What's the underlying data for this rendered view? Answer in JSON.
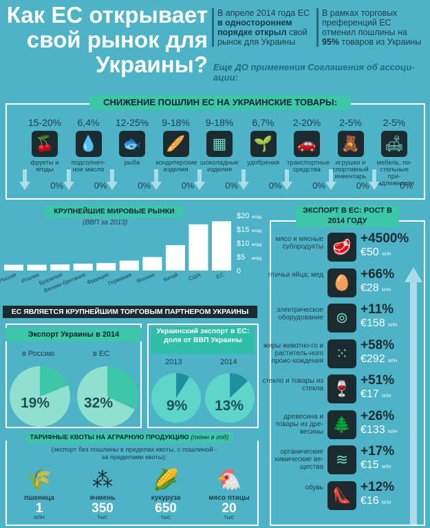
{
  "title": [
    "Как ЕС открывает",
    "свой рынок для",
    "Украины?"
  ],
  "intro1": {
    "pre": "В апреле 2014 года ЕС ",
    "bold": "в одностороннем порядке открыл",
    "post": " свой рынок для Украины"
  },
  "intro2": {
    "pre": "В рамках торговых преференций ЕС отменил пошлины на ",
    "bold": "95%",
    "post": " товаров из Украины"
  },
  "subtitle": "Еще ДО применения Соглашения об ассоци-ации:",
  "tariffs": {
    "banner": "СНИЖЕНИЕ ПОШЛИН ЕС НА УКРАИНСКИЕ ТОВАРЫ:",
    "items": [
      {
        "from": "15-20%",
        "label": "фрукты и ягоды",
        "to": "0%",
        "icon": "cherry-icon",
        "glyph": "🍒"
      },
      {
        "from": "6,4%",
        "label": "подсолнеч-ное масло",
        "to": "0%",
        "icon": "oil-drop-icon",
        "glyph": "💧"
      },
      {
        "from": "12-25%",
        "label": "рыба",
        "to": "0%",
        "icon": "fish-icon",
        "glyph": "🐟"
      },
      {
        "from": "9-18%",
        "label": "кондитерские изделия",
        "to": "0%",
        "icon": "bread-icon",
        "glyph": "🥖"
      },
      {
        "from": "9-18%",
        "label": "шоколадные изделия",
        "to": "0%",
        "icon": "chocolate-icon",
        "glyph": "▦"
      },
      {
        "from": "6,7%",
        "label": "удобрения",
        "to": "0%",
        "icon": "fertilizer-icon",
        "glyph": "🌱"
      },
      {
        "from": "2-20%",
        "label": "транспортные средства",
        "to": "0%",
        "icon": "car-icon",
        "glyph": "🚗"
      },
      {
        "from": "2-5%",
        "label": "игрушки и спортивный инвентарь",
        "to": "0%",
        "icon": "teddy-bear-icon",
        "glyph": "🧸"
      },
      {
        "from": "2-5%",
        "label": "мебель, по-стельные при-надлежности",
        "to": "0%",
        "icon": "sofa-icon",
        "glyph": "🛋"
      }
    ]
  },
  "markets": {
    "banner": "КРУПНЕЙШИЕ МИРОВЫЕ РЫНКИ",
    "note": "(ВВП за 2013)",
    "unit": "млрд",
    "ticks": [
      "$20",
      "$15",
      "$10",
      "$5",
      "0"
    ]
  },
  "partner_banner": "ЕС ЯВЛЯЕТСЯ КРУПНЕЙШИМ ТОРГОВЫМ ПАРТНЕРОМ УКРАИНЫ",
  "export2014": {
    "banner": "Экспорт Украины в 2014",
    "russia_label": "в Россию",
    "eu_label": "в ЕС",
    "russia_pct": "19%",
    "eu_pct": "32%"
  },
  "gdpshare": {
    "banner": "Украинский экспорт в ЕС: доля от ВВП Украины",
    "y1": "2013",
    "y2": "2014",
    "v1": "9%",
    "v2": "13%"
  },
  "growth": {
    "banner": "ЭКСПОРТ В ЕС: РОСТ В 2014 ГОДУ",
    "unit": "МЛН",
    "items": [
      {
        "label": "мясо и мясные субпродукты",
        "pct": "+4500%",
        "amt": "€50",
        "icon": "meat-icon",
        "glyph": "🥩"
      },
      {
        "label": "птичьи яйца; мед",
        "pct": "+66%",
        "amt": "€28",
        "icon": "egg-icon",
        "glyph": "🥚"
      },
      {
        "label": "электрическое оборудование",
        "pct": "+11%",
        "amt": "€158",
        "icon": "washing-machine-icon",
        "glyph": "⊚"
      },
      {
        "label": "жиры животно-го и раститель-ного проис-хождения",
        "pct": "+58%",
        "amt": "€292",
        "icon": "dots-icon",
        "glyph": "⁙"
      },
      {
        "label": "стекло и товары из стекла",
        "pct": "+51%",
        "amt": "€17",
        "icon": "wine-glass-icon",
        "glyph": "🍷"
      },
      {
        "label": "древесина и товары из дре-весины",
        "pct": "+26%",
        "amt": "€133",
        "icon": "trees-icon",
        "glyph": "🌲"
      },
      {
        "label": "органические химические ве-щества",
        "pct": "+17%",
        "amt": "€15",
        "icon": "waves-icon",
        "glyph": "≋"
      },
      {
        "label": "обувь",
        "pct": "+12%",
        "amt": "€16",
        "icon": "high-heel-icon",
        "glyph": "👠"
      }
    ]
  },
  "quotas": {
    "banner": "ТАРИФНЫЕ КВОТЫ НА АГРАРНУЮ ПРОДУКЦИЮ",
    "banner_note": "(тонн в год)",
    "note": "(экспорт без пошлины в пределах квоты, с пошлиной - за пределами квоты):",
    "items": [
      {
        "name": "пшеница",
        "value": "1",
        "unit": "МЛН",
        "icon": "wheat-icon",
        "glyph": "🌾"
      },
      {
        "name": "ячмень",
        "value": "350",
        "unit": "ТЫС",
        "icon": "barley-icon",
        "glyph": "⁂"
      },
      {
        "name": "кукуруза",
        "value": "650",
        "unit": "ТЫС",
        "icon": "corn-icon",
        "glyph": "🌽"
      },
      {
        "name": "мясо птицы",
        "value": "20",
        "unit": "ТЫС",
        "icon": "chicken-icon",
        "glyph": "🐔"
      }
    ]
  },
  "chart_data": [
    {
      "type": "bar",
      "title": "КРУПНЕЙШИЕ МИРОВЫЕ РЫНКИ",
      "subtitle": "(ВВП за 2013)",
      "categories": [
        "Россия",
        "Италия",
        "Бразилия",
        "Велико-британия",
        "Франция",
        "Германия",
        "Япония",
        "Китай",
        "США",
        "ЕС"
      ],
      "values": [
        2.1,
        2.1,
        2.2,
        2.5,
        2.7,
        3.6,
        4.9,
        9.2,
        16.8,
        17.9
      ],
      "ylabel": "млрд",
      "ylim": [
        0,
        20
      ],
      "yticks": [
        0,
        5,
        10,
        15,
        20
      ]
    },
    {
      "type": "pie",
      "title": "Экспорт Украины в 2014",
      "categories": [
        "в Россию",
        "в ЕС"
      ],
      "values": [
        19,
        32
      ]
    },
    {
      "type": "pie",
      "title": "Украинский экспорт в ЕС: доля от ВВП Украины",
      "categories": [
        "2013",
        "2014"
      ],
      "values": [
        9,
        13
      ]
    }
  ]
}
